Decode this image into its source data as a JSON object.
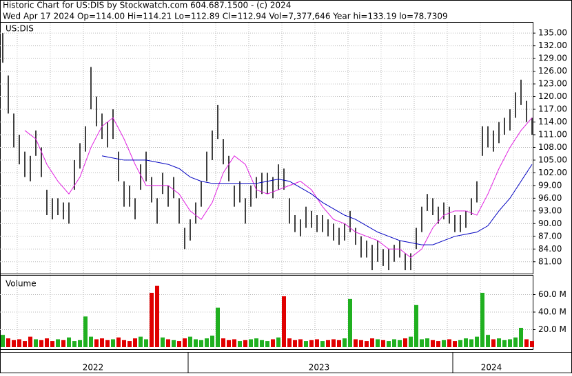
{
  "header": {
    "line1": "Historic Chart for US:DIS by Stockwatch.com 604.687.1500 - (c) 2024",
    "line2": "Wed Apr 17 2024  Op=114.00  Hi=114.21  Lo=112.89  Cl=112.94  Vol=7,377,646  Year hi=133.19  lo=78.7309"
  },
  "chart_data": [
    {
      "type": "ohlc",
      "label": "US:DIS",
      "color": "#000000",
      "grid": true,
      "high": [
        135,
        125,
        116,
        111,
        107,
        106,
        112,
        108,
        98,
        96,
        96,
        95,
        95,
        105,
        109,
        113,
        127,
        120,
        116,
        114,
        117,
        107,
        100,
        99,
        96,
        104,
        107,
        101,
        96,
        102,
        99,
        101,
        96,
        89,
        91,
        95,
        100,
        107,
        112,
        118,
        110,
        106,
        99,
        100,
        96,
        99,
        101,
        102,
        102,
        101,
        104,
        103,
        96,
        92,
        91,
        94,
        93,
        92,
        92,
        91,
        90,
        89,
        90,
        93,
        89,
        87,
        86,
        85,
        86,
        84,
        84,
        85,
        86,
        83,
        83,
        89,
        94,
        97,
        96,
        94,
        95,
        94,
        92,
        92,
        93,
        96,
        100,
        113,
        113,
        112,
        114,
        115,
        117,
        121,
        124,
        119,
        115
      ],
      "low": [
        128,
        116,
        108,
        104,
        101,
        100,
        106,
        101,
        92,
        91,
        92,
        91,
        90,
        98,
        103,
        107,
        117,
        113,
        110,
        108,
        110,
        100,
        94,
        94,
        91,
        98,
        100,
        95,
        90,
        97,
        94,
        96,
        90,
        84,
        86,
        90,
        94,
        100,
        105,
        110,
        104,
        100,
        94,
        95,
        90,
        94,
        96,
        97,
        97,
        96,
        98,
        98,
        90,
        88,
        87,
        89,
        89,
        88,
        88,
        87,
        86,
        85,
        86,
        88,
        85,
        82,
        82,
        79,
        81,
        80,
        79,
        81,
        82,
        79,
        79,
        84,
        88,
        93,
        92,
        90,
        91,
        90,
        88,
        88,
        89,
        92,
        95,
        106,
        108,
        107,
        109,
        111,
        112,
        115,
        118,
        114,
        111
      ],
      "moving_averages": [
        {
          "color": "#e020e0",
          "x": [
            4,
            6,
            8,
            10,
            12,
            14,
            16,
            18,
            20,
            22,
            24,
            26,
            28,
            30,
            32,
            34,
            36,
            38,
            40,
            42,
            44,
            46,
            48,
            50,
            52,
            54,
            56,
            58,
            60,
            62,
            64,
            66,
            68,
            70,
            72,
            74,
            76,
            78,
            80,
            82,
            84,
            86,
            88,
            90,
            92,
            94,
            96
          ],
          "values": [
            112,
            110,
            104,
            100,
            97,
            101,
            108,
            113,
            115,
            110,
            104,
            99,
            99,
            99,
            97,
            93,
            91,
            95,
            102,
            106,
            104,
            98,
            97,
            98,
            99,
            100,
            98,
            94,
            91,
            90,
            88,
            87,
            86,
            84,
            84,
            82,
            84,
            89,
            92,
            93,
            93,
            92,
            97,
            103,
            108,
            112,
            115
          ]
        },
        {
          "color": "#0000c0",
          "x": [
            18,
            20,
            22,
            24,
            26,
            28,
            30,
            32,
            34,
            36,
            38,
            40,
            42,
            44,
            46,
            48,
            50,
            52,
            54,
            56,
            58,
            60,
            62,
            64,
            66,
            68,
            70,
            72,
            74,
            76,
            78,
            80,
            82,
            84,
            86,
            88,
            90,
            92,
            94,
            96
          ],
          "values": [
            106,
            105.5,
            105,
            105,
            105,
            104.5,
            104,
            103,
            101,
            100,
            99.5,
            99.5,
            99.5,
            99.5,
            99.5,
            100,
            100.5,
            100,
            98.5,
            97,
            95,
            93.5,
            92,
            91,
            89.5,
            88,
            87,
            86,
            85.5,
            85,
            85,
            86,
            87,
            87.5,
            88,
            89.5,
            93,
            96,
            100,
            104
          ]
        }
      ],
      "ylim": [
        78.2,
        136
      ],
      "yticks": [
        {
          "value": 135,
          "label": "135.00"
        },
        {
          "value": 132,
          "label": "132.00"
        },
        {
          "value": 129,
          "label": "129.00"
        },
        {
          "value": 126,
          "label": "126.00"
        },
        {
          "value": 123,
          "label": "123.00"
        },
        {
          "value": 120,
          "label": "120.00"
        },
        {
          "value": 117,
          "label": "117.00"
        },
        {
          "value": 114,
          "label": "114.00"
        },
        {
          "value": 111,
          "label": "111.00"
        },
        {
          "value": 108,
          "label": "108.00"
        },
        {
          "value": 105,
          "label": "105.00"
        },
        {
          "value": 102,
          "label": "102.00"
        },
        {
          "value": 99,
          "label": "99.00"
        },
        {
          "value": 96,
          "label": "96.00"
        },
        {
          "value": 93,
          "label": "93.00"
        },
        {
          "value": 90,
          "label": "90.00"
        },
        {
          "value": 87,
          "label": "87.00"
        },
        {
          "value": 84,
          "label": "84.00"
        },
        {
          "value": 81,
          "label": "81.00"
        }
      ]
    },
    {
      "type": "bar",
      "title": "Volume",
      "up_color": "#20b020",
      "down_color": "#e00000",
      "grid": true,
      "values": [
        14,
        10,
        8,
        9,
        7,
        12,
        9,
        8,
        10,
        7,
        9,
        8,
        11,
        7,
        8,
        35,
        12,
        9,
        10,
        8,
        9,
        11,
        8,
        7,
        10,
        12,
        9,
        62,
        70,
        11,
        9,
        8,
        7,
        10,
        12,
        9,
        8,
        10,
        13,
        45,
        10,
        8,
        9,
        7,
        8,
        9,
        10,
        8,
        7,
        9,
        11,
        58,
        10,
        8,
        9,
        7,
        8,
        9,
        7,
        8,
        9,
        8,
        10,
        55,
        9,
        8,
        7,
        10,
        9,
        8,
        7,
        9,
        8,
        10,
        12,
        48,
        9,
        10,
        8,
        7,
        8,
        9,
        7,
        8,
        10,
        9,
        12,
        62,
        14,
        9,
        10,
        8,
        9,
        11,
        22,
        9,
        7
      ],
      "ylim": [
        0,
        80
      ],
      "yticks": [
        {
          "value": 20,
          "label": "20.0 M"
        },
        {
          "value": 40,
          "label": "40.0 M"
        },
        {
          "value": 60,
          "label": "60.0 M"
        }
      ],
      "x_labels": [
        "2022",
        "2023",
        "2024"
      ]
    }
  ]
}
